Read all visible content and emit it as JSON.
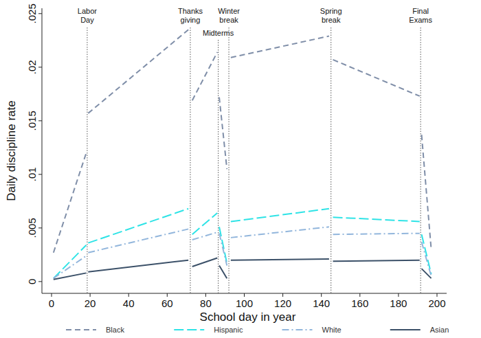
{
  "chart_data": {
    "type": "line",
    "x_label": "School day in year",
    "y_label": "Daily discipline rate",
    "x": [
      1,
      18,
      18.5,
      19,
      71,
      72,
      73,
      86,
      86.5,
      87,
      91,
      92,
      93,
      144,
      145,
      146,
      191,
      191.5,
      192,
      197
    ],
    "series": [
      {
        "name": "Black",
        "color": "#7f8ea8",
        "line_style": "dashed",
        "values": [
          0.0027,
          0.012,
          null,
          0.0157,
          0.0235,
          null,
          0.0169,
          0.0214,
          null,
          0.0172,
          0.0105,
          null,
          0.0209,
          0.0229,
          null,
          0.0207,
          0.0173,
          null,
          0.0137,
          0.003
        ]
      },
      {
        "name": "Hispanic",
        "color": "#2ee3e6",
        "line_style": "longdash",
        "values": [
          0.0003,
          0.0034,
          null,
          0.0036,
          0.0068,
          null,
          0.0044,
          0.0064,
          null,
          0.0051,
          0.0017,
          null,
          0.0056,
          0.0068,
          null,
          0.006,
          0.0056,
          null,
          0.0044,
          0.0007
        ]
      },
      {
        "name": "White",
        "color": "#92b6dc",
        "line_style": "dashdot",
        "values": [
          0.0003,
          0.0024,
          null,
          0.0027,
          0.0049,
          null,
          0.0039,
          0.0046,
          null,
          0.0045,
          0.0015,
          null,
          0.0041,
          0.0051,
          null,
          0.0044,
          0.0045,
          null,
          0.0037,
          0.0005
        ]
      },
      {
        "name": "Asian",
        "color": "#3b5068",
        "line_style": "solid",
        "values": [
          0.0002,
          0.0008,
          null,
          0.0009,
          0.002,
          null,
          0.0014,
          0.0022,
          null,
          0.0015,
          0.0003,
          null,
          0.002,
          0.0021,
          null,
          0.0019,
          0.002,
          null,
          0.0012,
          0.0003
        ]
      }
    ],
    "annotations": [
      {
        "label": "Labor Day",
        "x": 18.5
      },
      {
        "label": "Thanks giving",
        "x": 72
      },
      {
        "label": "Midterms",
        "x": 86.5
      },
      {
        "label": "Winter break",
        "x": 92
      },
      {
        "label": "Spring break",
        "x": 145
      },
      {
        "label": "Final Exams",
        "x": 191.5
      }
    ],
    "xlim": [
      -5,
      205
    ],
    "xticks": [
      0,
      20,
      40,
      60,
      80,
      100,
      120,
      140,
      160,
      180,
      200
    ],
    "ylim": [
      -0.0011,
      0.0255
    ],
    "yticks": [
      0,
      {
        "value": 0.005,
        "label": ".005"
      },
      {
        "value": 0.01,
        "label": ".01"
      },
      {
        "value": 0.015,
        "label": ".015"
      },
      {
        "value": 0.02,
        "label": ".02"
      },
      {
        "value": 0.025,
        "label": ".025"
      }
    ],
    "grid": false,
    "legend": "bottom"
  }
}
